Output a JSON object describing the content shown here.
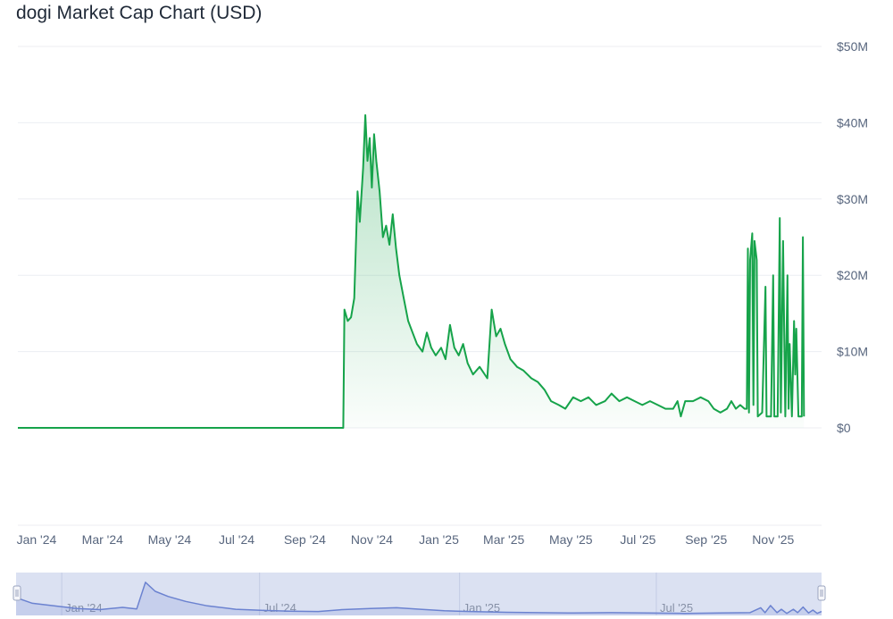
{
  "chart_data": {
    "type": "area",
    "title": "dogi Market Cap Chart (USD)",
    "xlabel": "",
    "ylabel": "",
    "currency": "USD",
    "ylim": [
      0,
      50000000
    ],
    "y_ticks": [
      "$0",
      "$10M",
      "$20M",
      "$30M",
      "$40M",
      "$50M"
    ],
    "y_tick_values": [
      0,
      10000000,
      20000000,
      30000000,
      40000000,
      50000000
    ],
    "xlim": [
      "2023-12-15",
      "2025-12-15"
    ],
    "x_ticks": [
      {
        "label": "Jan '24",
        "date": "2024-01-01"
      },
      {
        "label": "Mar '24",
        "date": "2024-03-01"
      },
      {
        "label": "May '24",
        "date": "2024-05-01"
      },
      {
        "label": "Jul '24",
        "date": "2024-07-01"
      },
      {
        "label": "Sep '24",
        "date": "2024-09-01"
      },
      {
        "label": "Nov '24",
        "date": "2024-11-01"
      },
      {
        "label": "Jan '25",
        "date": "2025-01-01"
      },
      {
        "label": "Mar '25",
        "date": "2025-03-01"
      },
      {
        "label": "May '25",
        "date": "2025-05-01"
      },
      {
        "label": "Jul '25",
        "date": "2025-07-01"
      },
      {
        "label": "Sep '25",
        "date": "2025-09-01"
      },
      {
        "label": "Nov '25",
        "date": "2025-11-01"
      }
    ],
    "grid": true,
    "legend": "none",
    "colors": {
      "line": "#16a34a",
      "fill": "#16a34a",
      "navigator_line": "#6b82d0",
      "navigator_fill": "#dbe1f2"
    },
    "series": [
      {
        "points": [
          [
            "2023-12-15",
            0
          ],
          [
            "2024-10-06",
            0
          ],
          [
            "2024-10-07",
            15500000
          ],
          [
            "2024-10-10",
            14000000
          ],
          [
            "2024-10-13",
            14500000
          ],
          [
            "2024-10-16",
            17000000
          ],
          [
            "2024-10-19",
            31000000
          ],
          [
            "2024-10-21",
            27000000
          ],
          [
            "2024-10-24",
            34000000
          ],
          [
            "2024-10-26",
            41000000
          ],
          [
            "2024-10-28",
            35000000
          ],
          [
            "2024-10-30",
            38000000
          ],
          [
            "2024-11-01",
            31500000
          ],
          [
            "2024-11-03",
            38500000
          ],
          [
            "2024-11-05",
            35000000
          ],
          [
            "2024-11-08",
            31000000
          ],
          [
            "2024-11-11",
            25000000
          ],
          [
            "2024-11-14",
            26500000
          ],
          [
            "2024-11-17",
            24000000
          ],
          [
            "2024-11-20",
            28000000
          ],
          [
            "2024-11-23",
            23500000
          ],
          [
            "2024-11-26",
            20000000
          ],
          [
            "2024-11-30",
            17000000
          ],
          [
            "2024-12-04",
            14000000
          ],
          [
            "2024-12-08",
            12500000
          ],
          [
            "2024-12-12",
            11000000
          ],
          [
            "2024-12-17",
            10000000
          ],
          [
            "2024-12-21",
            12500000
          ],
          [
            "2024-12-25",
            10500000
          ],
          [
            "2024-12-29",
            9500000
          ],
          [
            "2025-01-03",
            10500000
          ],
          [
            "2025-01-07",
            9000000
          ],
          [
            "2025-01-11",
            13500000
          ],
          [
            "2025-01-15",
            10500000
          ],
          [
            "2025-01-19",
            9500000
          ],
          [
            "2025-01-23",
            11000000
          ],
          [
            "2025-01-27",
            8500000
          ],
          [
            "2025-02-01",
            7000000
          ],
          [
            "2025-02-07",
            8000000
          ],
          [
            "2025-02-14",
            6500000
          ],
          [
            "2025-02-18",
            15500000
          ],
          [
            "2025-02-22",
            12000000
          ],
          [
            "2025-02-26",
            13000000
          ],
          [
            "2025-03-02",
            11000000
          ],
          [
            "2025-03-07",
            9000000
          ],
          [
            "2025-03-13",
            8000000
          ],
          [
            "2025-03-19",
            7500000
          ],
          [
            "2025-03-26",
            6500000
          ],
          [
            "2025-04-01",
            6000000
          ],
          [
            "2025-04-07",
            5000000
          ],
          [
            "2025-04-13",
            3500000
          ],
          [
            "2025-04-20",
            3000000
          ],
          [
            "2025-04-26",
            2500000
          ],
          [
            "2025-05-03",
            4000000
          ],
          [
            "2025-05-10",
            3500000
          ],
          [
            "2025-05-17",
            4000000
          ],
          [
            "2025-05-24",
            3000000
          ],
          [
            "2025-06-01",
            3500000
          ],
          [
            "2025-06-07",
            4500000
          ],
          [
            "2025-06-14",
            3500000
          ],
          [
            "2025-06-21",
            4000000
          ],
          [
            "2025-06-28",
            3500000
          ],
          [
            "2025-07-05",
            3000000
          ],
          [
            "2025-07-12",
            3500000
          ],
          [
            "2025-07-19",
            3000000
          ],
          [
            "2025-07-26",
            2500000
          ],
          [
            "2025-08-02",
            2500000
          ],
          [
            "2025-08-06",
            3500000
          ],
          [
            "2025-08-09",
            1500000
          ],
          [
            "2025-08-13",
            3500000
          ],
          [
            "2025-08-20",
            3500000
          ],
          [
            "2025-08-27",
            4000000
          ],
          [
            "2025-09-03",
            3500000
          ],
          [
            "2025-09-08",
            2500000
          ],
          [
            "2025-09-14",
            2000000
          ],
          [
            "2025-09-20",
            2500000
          ],
          [
            "2025-09-24",
            3500000
          ],
          [
            "2025-09-28",
            2500000
          ],
          [
            "2025-10-02",
            3000000
          ],
          [
            "2025-10-06",
            2500000
          ],
          [
            "2025-10-08",
            2500000
          ],
          [
            "2025-10-09",
            23500000
          ],
          [
            "2025-10-10",
            2000000
          ],
          [
            "2025-10-11",
            22000000
          ],
          [
            "2025-10-13",
            25500000
          ],
          [
            "2025-10-14",
            3000000
          ],
          [
            "2025-10-15",
            24500000
          ],
          [
            "2025-10-17",
            22000000
          ],
          [
            "2025-10-18",
            1500000
          ],
          [
            "2025-10-22",
            2000000
          ],
          [
            "2025-10-25",
            18500000
          ],
          [
            "2025-10-26",
            1500000
          ],
          [
            "2025-10-30",
            1500000
          ],
          [
            "2025-11-01",
            20000000
          ],
          [
            "2025-11-02",
            1500000
          ],
          [
            "2025-11-05",
            1500000
          ],
          [
            "2025-11-07",
            27500000
          ],
          [
            "2025-11-08",
            2000000
          ],
          [
            "2025-11-10",
            24500000
          ],
          [
            "2025-11-12",
            1500000
          ],
          [
            "2025-11-14",
            20000000
          ],
          [
            "2025-11-15",
            2500000
          ],
          [
            "2025-11-16",
            11000000
          ],
          [
            "2025-11-18",
            1500000
          ],
          [
            "2025-11-20",
            14000000
          ],
          [
            "2025-11-21",
            7000000
          ],
          [
            "2025-11-22",
            13000000
          ],
          [
            "2025-11-24",
            1500000
          ],
          [
            "2025-11-27",
            1500000
          ],
          [
            "2025-11-28",
            25000000
          ],
          [
            "2025-11-29",
            1500000
          ]
        ]
      }
    ],
    "navigator": {
      "x_ticks": [
        {
          "label": "Jan '24",
          "date": "2024-01-01"
        },
        {
          "label": "Jul '24",
          "date": "2024-07-01"
        },
        {
          "label": "Jan '25",
          "date": "2025-01-01"
        },
        {
          "label": "Jul '25",
          "date": "2025-07-01"
        }
      ],
      "xlim": [
        "2023-11-20",
        "2025-11-30"
      ],
      "max": 10,
      "points": [
        [
          "2023-11-20",
          4.5
        ],
        [
          "2023-12-05",
          3.0
        ],
        [
          "2023-12-25",
          2.3
        ],
        [
          "2024-01-15",
          1.6
        ],
        [
          "2024-02-05",
          1.3
        ],
        [
          "2024-02-26",
          1.9
        ],
        [
          "2024-03-10",
          1.5
        ],
        [
          "2024-03-18",
          8.6
        ],
        [
          "2024-03-27",
          6.2
        ],
        [
          "2024-04-08",
          4.8
        ],
        [
          "2024-04-24",
          3.5
        ],
        [
          "2024-05-14",
          2.3
        ],
        [
          "2024-06-09",
          1.4
        ],
        [
          "2024-07-05",
          1.1
        ],
        [
          "2024-07-29",
          0.9
        ],
        [
          "2024-08-24",
          0.8
        ],
        [
          "2024-09-15",
          1.3
        ],
        [
          "2024-10-11",
          1.6
        ],
        [
          "2024-11-04",
          1.8
        ],
        [
          "2024-11-26",
          1.4
        ],
        [
          "2024-12-18",
          1.0
        ],
        [
          "2025-01-11",
          0.8
        ],
        [
          "2025-02-13",
          0.6
        ],
        [
          "2025-03-13",
          0.5
        ],
        [
          "2025-04-16",
          0.4
        ],
        [
          "2025-05-20",
          0.5
        ],
        [
          "2025-06-23",
          0.4
        ],
        [
          "2025-07-27",
          0.3
        ],
        [
          "2025-08-28",
          0.4
        ],
        [
          "2025-09-25",
          0.5
        ],
        [
          "2025-10-05",
          1.8
        ],
        [
          "2025-10-09",
          0.5
        ],
        [
          "2025-10-14",
          2.4
        ],
        [
          "2025-10-20",
          0.5
        ],
        [
          "2025-10-24",
          1.4
        ],
        [
          "2025-10-29",
          0.3
        ],
        [
          "2025-11-04",
          1.4
        ],
        [
          "2025-11-08",
          0.5
        ],
        [
          "2025-11-13",
          2.0
        ],
        [
          "2025-11-18",
          0.4
        ],
        [
          "2025-11-22",
          1.2
        ],
        [
          "2025-11-26",
          0.3
        ],
        [
          "2025-11-30",
          0.8
        ]
      ]
    }
  }
}
